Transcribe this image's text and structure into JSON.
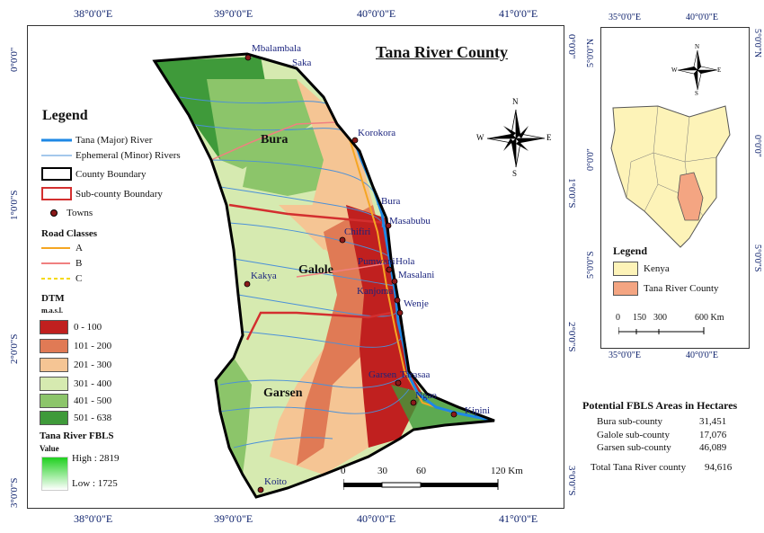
{
  "map": {
    "title": "Tana River County",
    "top_coords": [
      "38°0'0\"E",
      "39°0'0\"E",
      "40°0'0\"E",
      "41°0'0\"E"
    ],
    "bottom_coords": [
      "38°0'0\"E",
      "39°0'0\"E",
      "40°0'0\"E",
      "41°0'0\"E"
    ],
    "left_coords": [
      "0°0'0\"",
      "1°0'0\"S",
      "2°0'0\"S",
      "3°0'0\"S"
    ],
    "right_coords": [
      "0°0'0\"",
      "1°0'0\"S",
      "2°0'0\"S",
      "3°0'0\"S"
    ],
    "subcounties": [
      "Bura",
      "Galole",
      "Garsen"
    ],
    "towns": [
      "Mbalambala",
      "Saka",
      "Korokora",
      "Bura",
      "Masabubu",
      "Chifiri",
      "Pumwani",
      "Hola",
      "Masalani",
      "Kakya",
      "Kanjoma",
      "Wenje",
      "Garsen",
      "Tarasaa",
      "Ngao",
      "Kipini",
      "Koito"
    ],
    "compass": {
      "n": "N",
      "s": "S",
      "e": "E",
      "w": "W"
    },
    "scale": {
      "labels": [
        "0",
        "30",
        "60",
        "120 Km"
      ]
    }
  },
  "legend": {
    "title": "Legend",
    "items": [
      {
        "label": "Tana (Major) River",
        "color": "#1e88e5"
      },
      {
        "label": "Ephemeral (Minor) Rivers",
        "color": "#4a90d9"
      },
      {
        "label": "County Boundary",
        "color": "#000000"
      },
      {
        "label": "Sub-county Boundary",
        "color": "#d32f2f"
      },
      {
        "label": "Towns",
        "color": "#8b1a1a"
      }
    ],
    "roads_title": "Road Classes",
    "roads": [
      {
        "label": "A",
        "color": "#f5a623"
      },
      {
        "label": "B",
        "color": "#f08080"
      },
      {
        "label": "C",
        "color": "#f5d90a"
      }
    ],
    "dtm_title": "DTM",
    "dtm_unit": "m.a.s.l.",
    "dtm": [
      {
        "label": "0 - 100",
        "color": "#c0201f"
      },
      {
        "label": "101 - 200",
        "color": "#e07a55"
      },
      {
        "label": "201 - 300",
        "color": "#f5c594"
      },
      {
        "label": "301 - 400",
        "color": "#d6eab0"
      },
      {
        "label": "401 - 500",
        "color": "#8cc56a"
      },
      {
        "label": "501 - 638",
        "color": "#3f9a3a"
      }
    ],
    "fbls_title": "Tana River FBLS",
    "fbls_value": "Value",
    "fbls_high": "High : 2819",
    "fbls_low": "Low : 1725"
  },
  "inset": {
    "top_coords": [
      "35°0'0\"E",
      "40°0'0\"E"
    ],
    "bottom_coords": [
      "35°0'0\"E",
      "40°0'0\"E"
    ],
    "left_coords": [
      "5°0'0\"N",
      "0°0'0\"",
      "5°0'0\"S"
    ],
    "right_coords": [
      "5°0'0\"N",
      "0°0'0\"",
      "5°0'0\"S"
    ],
    "legend_title": "Legend",
    "items": [
      {
        "label": "Kenya",
        "color": "#fdf3b8"
      },
      {
        "label": "Tana River County",
        "color": "#f4a582"
      }
    ],
    "scale_labels": [
      "0",
      "150",
      "300",
      "600 Km"
    ],
    "compass": {
      "n": "N",
      "s": "S",
      "e": "E",
      "w": "W"
    }
  },
  "stats": {
    "title": "Potential FBLS Areas in Hectares",
    "rows": [
      {
        "name": "Bura sub-county",
        "value": "31,451"
      },
      {
        "name": "Galole sub-county",
        "value": "17,076"
      },
      {
        "name": "Garsen sub-county",
        "value": "46,089"
      }
    ],
    "total_label": "Total Tana River county",
    "total_value": "94,616"
  }
}
